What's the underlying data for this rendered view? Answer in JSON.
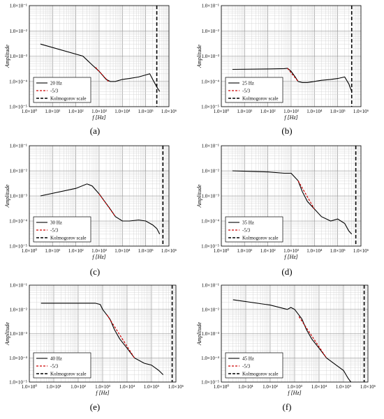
{
  "chart_data": [
    {
      "type": "line",
      "panel_label": "(a)",
      "xlabel": "f [Hz]",
      "ylabel": "Amplitude",
      "xscale": "log",
      "yscale": "log",
      "xlim": [
        1,
        1000000
      ],
      "ylim": [
        1e-05,
        0.1
      ],
      "x_ticks": [
        "1.0×10⁰",
        "1.0×10¹",
        "1.0×10²",
        "1.0×10³",
        "1.0×10⁴",
        "1.0×10⁵",
        "1.0×10⁶"
      ],
      "y_ticks": [
        "1.0×10⁻¹",
        "1.0×10⁻²",
        "1.0×10⁻³",
        "1.0×10⁻⁴",
        "1.0×10⁻⁵"
      ],
      "grid": true,
      "legend_position": "lower-left",
      "legend": [
        "20 Hz",
        "-5/3",
        "Kolmogorov scale"
      ],
      "series": [
        {
          "name": "20 Hz",
          "style": "solid",
          "color": "#000000",
          "x": [
            3,
            200,
            500,
            1000,
            2000,
            3000,
            5000,
            10000,
            20000,
            50000,
            100000,
            150000,
            200000,
            300000,
            400000
          ],
          "y": [
            0.003,
            0.001,
            0.00045,
            0.00025,
            0.00012,
            0.0001,
            0.0001,
            0.00012,
            0.00013,
            0.00015,
            0.00018,
            0.0002,
            0.00012,
            6e-05,
            4e-05
          ]
        },
        {
          "name": "-5/3",
          "style": "dashed",
          "color": "#cc0000",
          "x": [
            700,
            2500
          ],
          "y": [
            0.00036,
            0.0001
          ]
        }
      ],
      "kolmogorov_scale_hz": 300000
    },
    {
      "type": "line",
      "panel_label": "(b)",
      "xlabel": "f [Hz]",
      "ylabel": "Amplitude",
      "xscale": "log",
      "yscale": "log",
      "xlim": [
        1,
        1000000
      ],
      "ylim": [
        1e-05,
        0.1
      ],
      "x_ticks": [
        "1.0×10⁰",
        "1.0×10¹",
        "1.0×10²",
        "1.0×10³",
        "1.0×10⁴",
        "1.0×10⁵",
        "1.0×10⁶"
      ],
      "y_ticks": [
        "1.0×10⁻¹",
        "1.0×10⁻²",
        "1.0×10⁻³",
        "1.0×10⁻⁴",
        "1.0×10⁻⁵"
      ],
      "grid": true,
      "legend_position": "lower-left",
      "legend": [
        "25 Hz",
        "-5/3",
        "Kolmogorov scale"
      ],
      "series": [
        {
          "name": "25 Hz",
          "style": "solid",
          "color": "#000000",
          "x": [
            3,
            100,
            500,
            700,
            1000,
            1500,
            2000,
            3000,
            5000,
            10000,
            20000,
            50000,
            100000,
            200000,
            300000,
            400000
          ],
          "y": [
            0.0003,
            0.00031,
            0.00032,
            0.00033,
            0.00025,
            0.00015,
            0.0001,
            9e-05,
            9e-05,
            0.0001,
            0.00011,
            0.00012,
            0.00013,
            0.00015,
            8e-05,
            4e-05
          ]
        },
        {
          "name": "-5/3",
          "style": "dashed",
          "color": "#cc0000",
          "x": [
            700,
            2000
          ],
          "y": [
            0.00033,
            0.0001
          ]
        }
      ],
      "kolmogorov_scale_hz": 400000
    },
    {
      "type": "line",
      "panel_label": "(c)",
      "xlabel": "f [Hz]",
      "ylabel": "Amplitude",
      "xscale": "log",
      "yscale": "log",
      "xlim": [
        1,
        1000000
      ],
      "ylim": [
        1e-05,
        0.1
      ],
      "x_ticks": [
        "1.0×10⁰",
        "1.0×10¹",
        "1.0×10²",
        "1.0×10³",
        "1.0×10⁴",
        "1.0×10⁵",
        "1.0×10⁶"
      ],
      "y_ticks": [
        "1.0×10⁻¹",
        "1.0×10⁻²",
        "1.0×10⁻³",
        "1.0×10⁻⁴",
        "1.0×10⁻⁵"
      ],
      "grid": true,
      "legend_position": "lower-left",
      "legend": [
        "30 Hz",
        "-5/3",
        "Kolmogorov scale"
      ],
      "series": [
        {
          "name": "30 Hz",
          "style": "solid",
          "color": "#000000",
          "x": [
            3,
            100,
            300,
            500,
            1000,
            2000,
            3000,
            5000,
            10000,
            20000,
            50000,
            100000,
            200000,
            300000,
            400000
          ],
          "y": [
            0.001,
            0.002,
            0.003,
            0.0025,
            0.0012,
            0.0005,
            0.0003,
            0.00015,
            0.0001,
            0.0001,
            0.00011,
            0.0001,
            7e-05,
            5e-05,
            3e-05
          ]
        },
        {
          "name": "-5/3",
          "style": "dashed",
          "color": "#cc0000",
          "x": [
            1000,
            5000
          ],
          "y": [
            0.0012,
            0.00015
          ]
        }
      ],
      "kolmogorov_scale_hz": 550000
    },
    {
      "type": "line",
      "panel_label": "(d)",
      "xlabel": "f [Hz]",
      "ylabel": "Amplitude",
      "xscale": "log",
      "yscale": "log",
      "xlim": [
        1,
        1000000
      ],
      "ylim": [
        1e-05,
        0.1
      ],
      "x_ticks": [
        "1.0×10⁰",
        "1.0×10¹",
        "1.0×10²",
        "1.0×10³",
        "1.0×10⁴",
        "1.0×10⁵",
        "1.0×10⁶"
      ],
      "y_ticks": [
        "1.0×10⁻¹",
        "1.0×10⁻²",
        "1.0×10⁻³",
        "1.0×10⁻⁴",
        "1.0×10⁻⁵"
      ],
      "grid": true,
      "legend_position": "lower-left",
      "legend": [
        "35 Hz",
        "-5/3",
        "Kolmogorov scale"
      ],
      "series": [
        {
          "name": "35 Hz",
          "style": "solid",
          "color": "#000000",
          "x": [
            3,
            100,
            500,
            1000,
            2000,
            3000,
            5000,
            10000,
            20000,
            50000,
            100000,
            200000,
            300000,
            400000
          ],
          "y": [
            0.01,
            0.009,
            0.008,
            0.008,
            0.004,
            0.0015,
            0.0006,
            0.0003,
            0.00015,
            0.0001,
            0.00012,
            8e-05,
            4e-05,
            3e-05
          ]
        },
        {
          "name": "-5/3",
          "style": "dashed",
          "color": "#cc0000",
          "x": [
            2000,
            10000
          ],
          "y": [
            0.004,
            0.0003
          ]
        }
      ],
      "kolmogorov_scale_hz": 600000
    },
    {
      "type": "line",
      "panel_label": "(e)",
      "xlabel": "f [Hz]",
      "ylabel": "Amplitude",
      "xscale": "log",
      "yscale": "log",
      "xlim": [
        1,
        1000000
      ],
      "ylim": [
        1e-05,
        0.1
      ],
      "x_ticks": [
        "1.0×10⁰",
        "1.0×10¹",
        "1.0×10²",
        "1.0×10³",
        "1.0×10⁴",
        "1.0×10⁵",
        "1.0×10⁶"
      ],
      "y_ticks": [
        "1.0×10⁻¹",
        "1.0×10⁻²",
        "1.0×10⁻³",
        "1.0×10⁻⁴",
        "1.0×10⁻⁵"
      ],
      "grid": true,
      "legend_position": "lower-left",
      "legend": [
        "40 Hz",
        "-5/3",
        "Kolmogorov scale"
      ],
      "series": [
        {
          "name": "40 Hz",
          "style": "solid",
          "color": "#000000",
          "x": [
            3,
            100,
            500,
            800,
            1000,
            2000,
            3000,
            5000,
            10000,
            20000,
            50000,
            100000,
            200000,
            300000
          ],
          "y": [
            0.018,
            0.018,
            0.018,
            0.016,
            0.01,
            0.004,
            0.0015,
            0.0006,
            0.00025,
            0.0001,
            6e-05,
            5e-05,
            3e-05,
            2e-05
          ]
        },
        {
          "name": "-5/3",
          "style": "dashed",
          "color": "#cc0000",
          "x": [
            1500,
            20000
          ],
          "y": [
            0.006,
            0.0001
          ]
        }
      ],
      "kolmogorov_scale_hz": 700000
    },
    {
      "type": "line",
      "panel_label": "(f)",
      "xlabel": "f [Hz]",
      "ylabel": "Amplitude",
      "xscale": "log",
      "yscale": "log",
      "xlim": [
        1,
        1000000
      ],
      "ylim": [
        1e-05,
        0.1
      ],
      "x_ticks": [
        "1.0×10⁰",
        "1.0×10¹",
        "1.0×10²",
        "1.0×10³",
        "1.0×10⁴",
        "1.0×10⁵",
        "1.0×10⁶"
      ],
      "y_ticks": [
        "1.0×10⁻¹",
        "1.0×10⁻²",
        "1.0×10⁻³",
        "1.0×10⁻⁴",
        "1.0×10⁻⁵"
      ],
      "grid": true,
      "legend_position": "lower-left",
      "legend": [
        "45 Hz",
        "-5/3",
        "Kolmogorov scale"
      ],
      "series": [
        {
          "name": "45 Hz",
          "style": "solid",
          "color": "#000000",
          "x": [
            3,
            100,
            500,
            700,
            1000,
            2000,
            3000,
            5000,
            10000,
            20000,
            50000,
            100000,
            150000,
            200000
          ],
          "y": [
            0.025,
            0.015,
            0.01,
            0.012,
            0.01,
            0.004,
            0.0015,
            0.0006,
            0.00025,
            0.0001,
            5e-05,
            3e-05,
            1.5e-05,
            1e-05
          ]
        },
        {
          "name": "-5/3",
          "style": "dashed",
          "color": "#cc0000",
          "x": [
            1500,
            20000
          ],
          "y": [
            0.005,
            0.0001
          ]
        }
      ],
      "kolmogorov_scale_hz": 700000
    }
  ]
}
